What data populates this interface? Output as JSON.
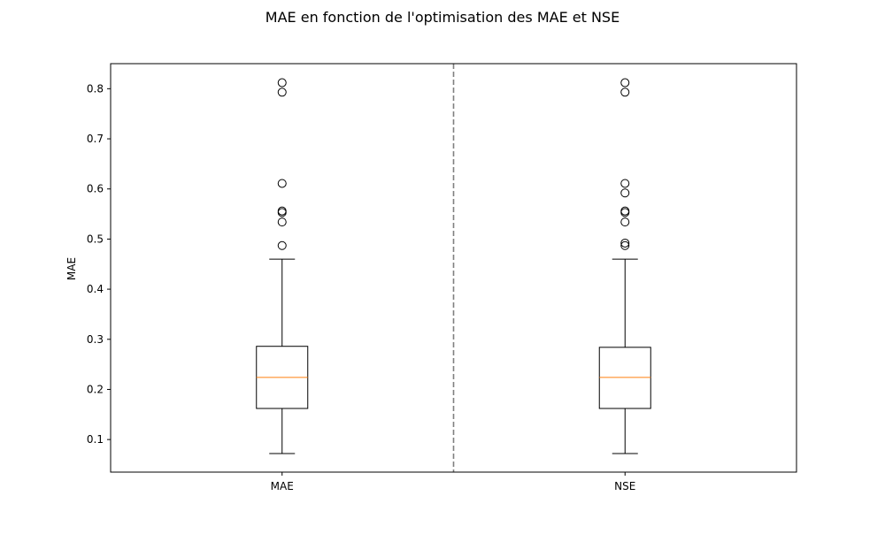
{
  "chart_data": {
    "type": "boxplot",
    "title": "MAE en fonction de l'optimisation des MAE et NSE",
    "xlabel": "",
    "ylabel": "MAE",
    "categories": [
      "MAE",
      "NSE"
    ],
    "ylim": [
      0.035,
      0.85
    ],
    "yticks": [
      0.1,
      0.2,
      0.3,
      0.4,
      0.5,
      0.6,
      0.7,
      0.8
    ],
    "grid": false,
    "separator": "dashed vertical line between the two boxes",
    "colors": {
      "box": "#000000",
      "median": "#ff7f0e",
      "separator": "#808080",
      "flier": "#000000"
    },
    "series": [
      {
        "category": "MAE",
        "whisker_low": 0.072,
        "q1": 0.162,
        "median": 0.224,
        "q3": 0.286,
        "whisker_high": 0.46,
        "outliers": [
          0.487,
          0.534,
          0.553,
          0.556,
          0.611,
          0.793,
          0.812
        ]
      },
      {
        "category": "NSE",
        "whisker_low": 0.072,
        "q1": 0.162,
        "median": 0.224,
        "q3": 0.284,
        "whisker_high": 0.46,
        "outliers": [
          0.487,
          0.492,
          0.534,
          0.553,
          0.556,
          0.592,
          0.611,
          0.793,
          0.812
        ]
      }
    ]
  }
}
